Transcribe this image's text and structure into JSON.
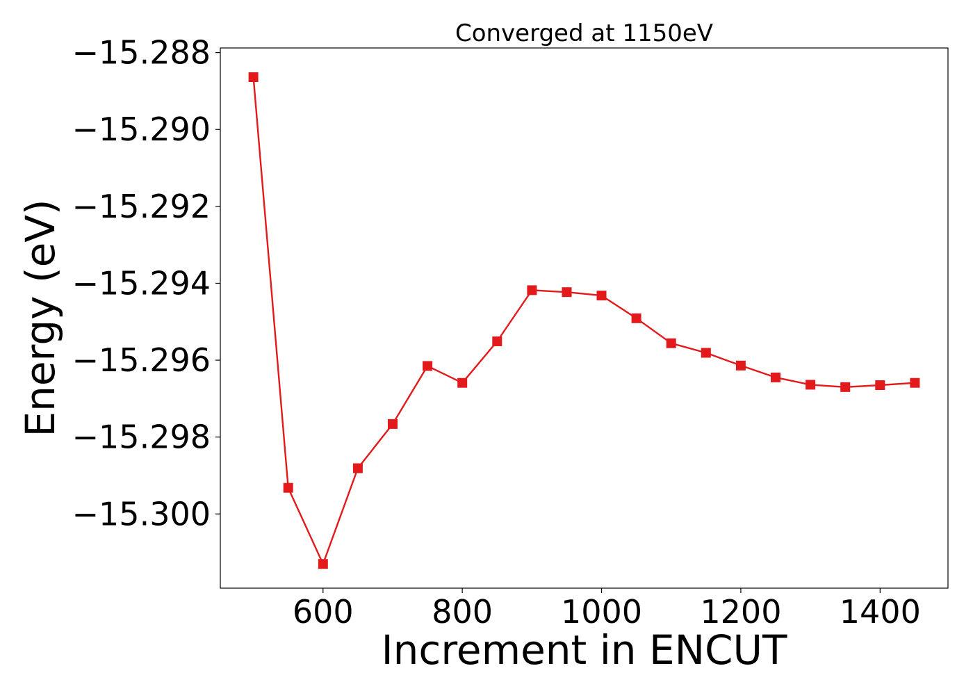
{
  "chart_data": {
    "type": "line",
    "title": "Converged at 1150eV",
    "xlabel": "Increment in ENCUT",
    "ylabel": "Energy (eV)",
    "xlim": [
      452.5,
      1497.5
    ],
    "ylim": [
      -15.30193,
      -15.28788
    ],
    "xticks": [
      600,
      800,
      1000,
      1200,
      1400
    ],
    "xtick_labels": [
      "600",
      "800",
      "1000",
      "1200",
      "1400"
    ],
    "yticks": [
      -15.288,
      -15.29,
      -15.292,
      -15.294,
      -15.296,
      -15.298,
      -15.3
    ],
    "ytick_labels": [
      "−15.288",
      "−15.290",
      "−15.292",
      "−15.294",
      "−15.296",
      "−15.298",
      "−15.300"
    ],
    "grid": false,
    "series": [
      {
        "color": "#e31a1c",
        "marker": "square",
        "x": [
          500,
          550,
          600,
          650,
          700,
          750,
          800,
          850,
          900,
          950,
          1000,
          1050,
          1100,
          1150,
          1200,
          1250,
          1300,
          1350,
          1400,
          1450
        ],
        "y": [
          -15.28864,
          -15.29932,
          -15.3013,
          -15.29881,
          -15.29766,
          -15.29615,
          -15.29659,
          -15.29551,
          -15.29418,
          -15.29423,
          -15.29432,
          -15.29491,
          -15.29556,
          -15.29581,
          -15.29614,
          -15.29645,
          -15.29664,
          -15.2967,
          -15.29665,
          -15.29659
        ]
      }
    ]
  }
}
